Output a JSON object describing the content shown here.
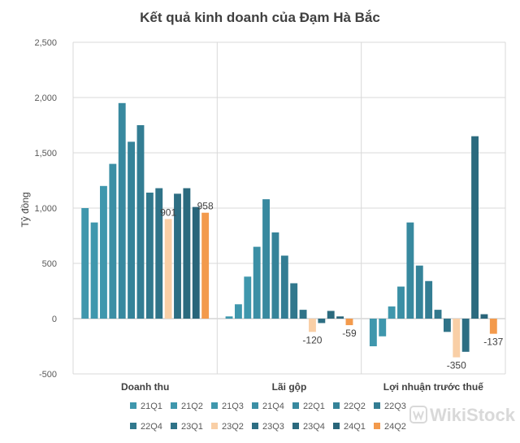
{
  "chart_data": {
    "type": "bar",
    "title": "Kết quả kinh doanh của Đạm Hà Bắc",
    "ylabel": "Tỷ đồng",
    "xlabel": "",
    "ylim": [
      -500,
      2500
    ],
    "yticks": [
      "-500",
      "0",
      "500",
      "1,000",
      "1,500",
      "2,000",
      "2,500"
    ],
    "ytick_values": [
      -500,
      0,
      500,
      1000,
      1500,
      2000,
      2500
    ],
    "grid": true,
    "legend_position": "bottom",
    "categories": [
      "Doanh thu",
      "Lãi gộp",
      "Lợi nhuận trước thuế"
    ],
    "series": [
      {
        "name": "21Q1",
        "color": "#3f97ad",
        "values": [
          1000,
          20,
          -250
        ]
      },
      {
        "name": "21Q2",
        "color": "#3f97ad",
        "values": [
          870,
          130,
          -160
        ]
      },
      {
        "name": "21Q3",
        "color": "#3f97ad",
        "values": [
          1200,
          380,
          110
        ]
      },
      {
        "name": "21Q4",
        "color": "#3b8fa5",
        "values": [
          1400,
          650,
          290
        ]
      },
      {
        "name": "22Q1",
        "color": "#38899f",
        "values": [
          1950,
          1080,
          870
        ]
      },
      {
        "name": "22Q2",
        "color": "#358399",
        "values": [
          1600,
          780,
          480
        ]
      },
      {
        "name": "22Q3",
        "color": "#337d93",
        "values": [
          1750,
          570,
          340
        ]
      },
      {
        "name": "22Q4",
        "color": "#31788d",
        "values": [
          1140,
          320,
          80
        ]
      },
      {
        "name": "23Q1",
        "color": "#2f7388",
        "values": [
          1180,
          80,
          -120
        ]
      },
      {
        "name": "23Q2",
        "color": "#f9cfa6",
        "values": [
          901,
          -120,
          -350
        ]
      },
      {
        "name": "23Q3",
        "color": "#2d6e83",
        "values": [
          1130,
          -40,
          -300
        ]
      },
      {
        "name": "23Q4",
        "color": "#2b6a7e",
        "values": [
          1180,
          70,
          1650
        ]
      },
      {
        "name": "24Q1",
        "color": "#29657a",
        "values": [
          1010,
          20,
          40
        ]
      },
      {
        "name": "24Q2",
        "color": "#f39a4c",
        "values": [
          958,
          -59,
          -137
        ]
      }
    ],
    "data_labels": [
      {
        "series": "23Q2",
        "category": 0,
        "text": "901"
      },
      {
        "series": "24Q2",
        "category": 0,
        "text": "958"
      },
      {
        "series": "23Q2",
        "category": 1,
        "text": "-120"
      },
      {
        "series": "24Q2",
        "category": 1,
        "text": "-59"
      },
      {
        "series": "23Q2",
        "category": 2,
        "text": "-350"
      },
      {
        "series": "24Q2",
        "category": 2,
        "text": "-137"
      }
    ]
  },
  "watermark": {
    "text": "WikiStock"
  }
}
